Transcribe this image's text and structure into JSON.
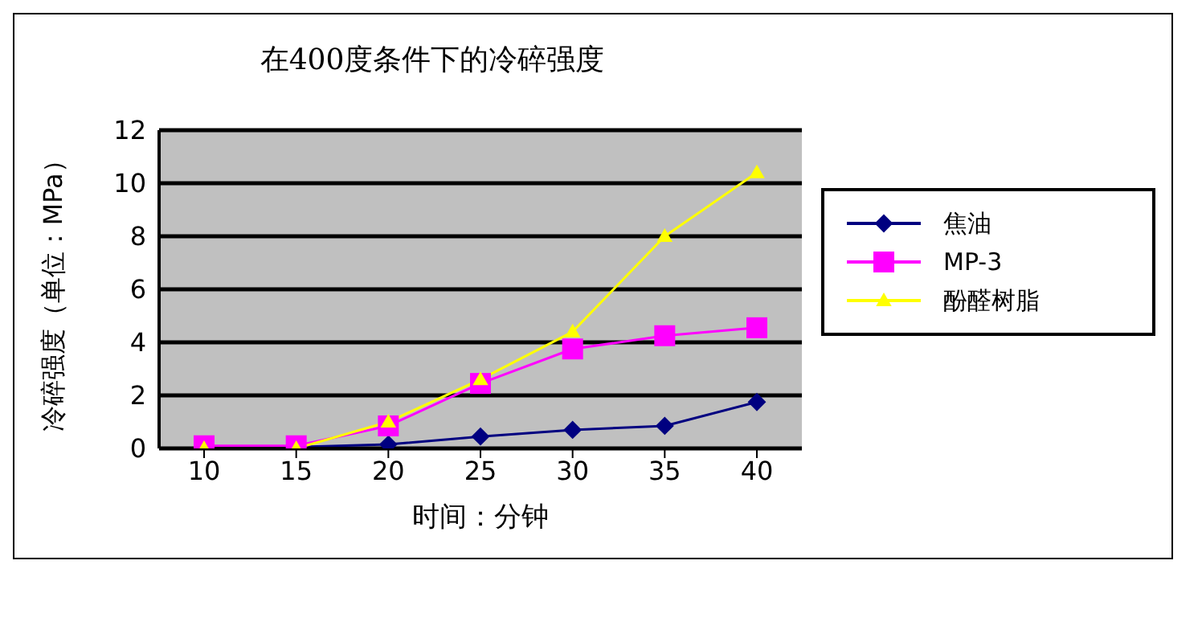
{
  "chart_data": {
    "type": "line",
    "title": "在400度条件下的冷碎强度",
    "xlabel": "时间：分钟",
    "ylabel": "冷碎强度（单位：MPa）",
    "categories": [
      "10",
      "15",
      "20",
      "25",
      "30",
      "35",
      "40"
    ],
    "series": [
      {
        "name": "焦油",
        "color": "#000080",
        "marker": "diamond",
        "values": [
          0,
          0.05,
          0.15,
          0.45,
          0.7,
          0.85,
          1.75
        ]
      },
      {
        "name": "MP-3",
        "color": "#ff00ff",
        "marker": "square",
        "values": [
          0.1,
          0.1,
          0.85,
          2.45,
          3.75,
          4.25,
          4.55
        ]
      },
      {
        "name": "酚醛树脂",
        "color": "#ffff00",
        "marker": "triangle",
        "values": [
          0,
          0,
          1,
          2.6,
          4.4,
          8,
          10.4
        ]
      }
    ],
    "ylim": [
      0,
      12
    ],
    "yticks": [
      0,
      2,
      4,
      6,
      8,
      10,
      12
    ],
    "grid": "y",
    "legend": "right"
  }
}
